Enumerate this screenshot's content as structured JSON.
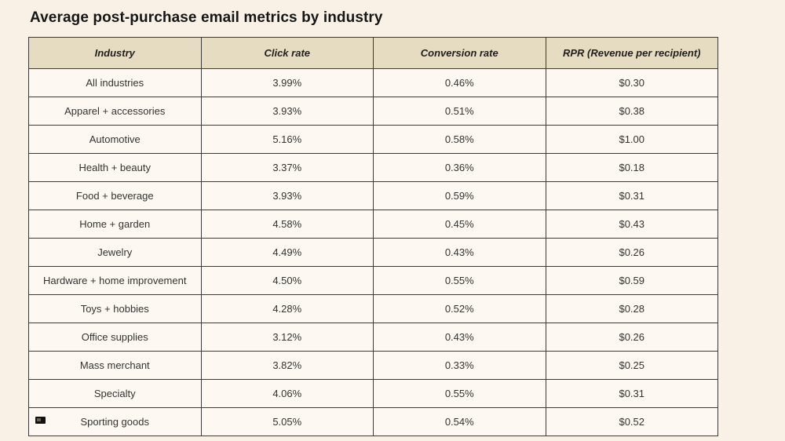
{
  "page": {
    "title": "Average post-purchase email metrics by industry"
  },
  "colors": {
    "page_bg": "#f9f1e5",
    "header_bg": "#e6dcc2",
    "cell_bg": "#fdf9f2",
    "border": "#3a3a3a",
    "title_color": "#161616",
    "text_color": "#333333"
  },
  "icons": {
    "artifact_marker": "small-dark-rectangle-artifact"
  },
  "chart_data": {
    "type": "table",
    "title": "Average post-purchase email metrics by industry",
    "columns": [
      "Industry",
      "Click rate",
      "Conversion rate",
      "RPR (Revenue per recipient)"
    ],
    "rows": [
      [
        "All industries",
        "3.99%",
        "0.46%",
        "$0.30"
      ],
      [
        "Apparel + accessories",
        "3.93%",
        "0.51%",
        "$0.38"
      ],
      [
        "Automotive",
        "5.16%",
        "0.58%",
        "$1.00"
      ],
      [
        "Health + beauty",
        "3.37%",
        "0.36%",
        "$0.18"
      ],
      [
        "Food + beverage",
        "3.93%",
        "0.59%",
        "$0.31"
      ],
      [
        "Home + garden",
        "4.58%",
        "0.45%",
        "$0.43"
      ],
      [
        "Jewelry",
        "4.49%",
        "0.43%",
        "$0.26"
      ],
      [
        "Hardware + home improvement",
        "4.50%",
        "0.55%",
        "$0.59"
      ],
      [
        "Toys + hobbies",
        "4.28%",
        "0.52%",
        "$0.28"
      ],
      [
        "Office supplies",
        "3.12%",
        "0.43%",
        "$0.26"
      ],
      [
        "Mass merchant",
        "3.82%",
        "0.33%",
        "$0.25"
      ],
      [
        "Specialty",
        "4.06%",
        "0.55%",
        "$0.31"
      ],
      [
        "Sporting goods",
        "5.05%",
        "0.54%",
        "$0.52"
      ]
    ]
  }
}
